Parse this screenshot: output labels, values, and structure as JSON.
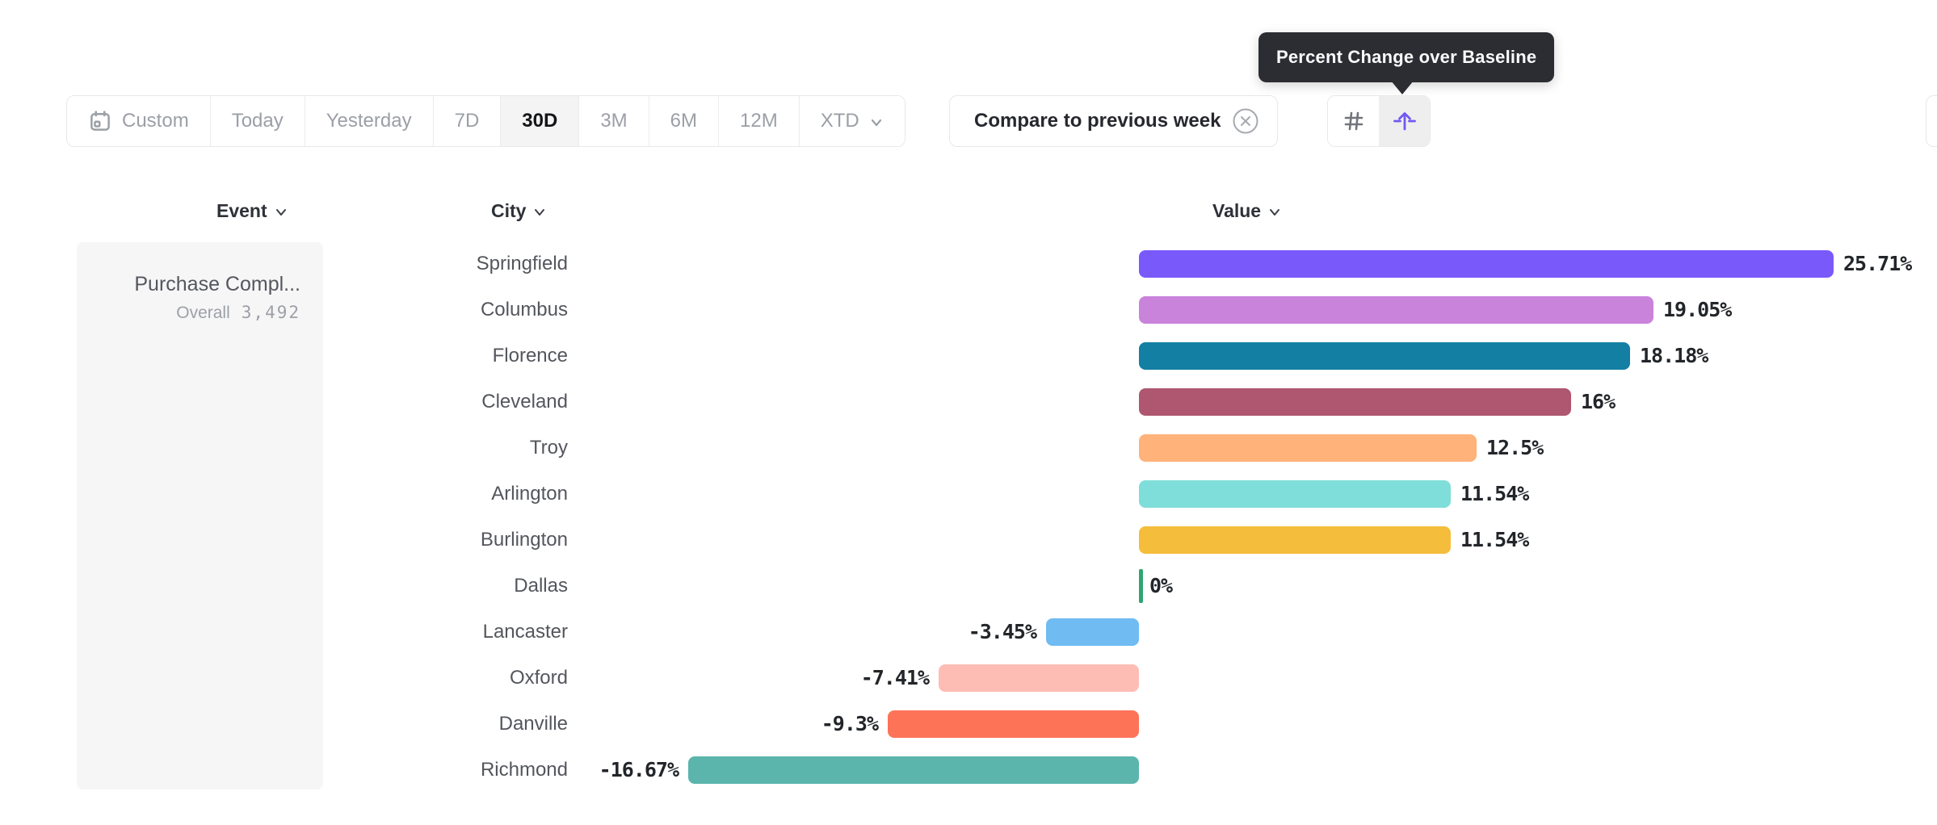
{
  "tooltip": {
    "text": "Percent Change over Baseline"
  },
  "toolbar": {
    "items": [
      {
        "label": "Custom",
        "icon": "calendar-icon",
        "selected": false
      },
      {
        "label": "Today",
        "selected": false
      },
      {
        "label": "Yesterday",
        "selected": false
      },
      {
        "label": "7D",
        "selected": false
      },
      {
        "label": "30D",
        "selected": true
      },
      {
        "label": "3M",
        "selected": false
      },
      {
        "label": "6M",
        "selected": false
      },
      {
        "label": "12M",
        "selected": false
      },
      {
        "label": "XTD",
        "selected": false,
        "chevron": true
      }
    ]
  },
  "comparison": {
    "label": "Compare to previous week",
    "close_icon": "circle-x-icon"
  },
  "view_toggles": {
    "number_view": {
      "icon": "hash-icon",
      "selected": false
    },
    "percent_change_view": {
      "icon": "baseline-arrow-up-icon",
      "selected": true,
      "accent_color": "#7158F0"
    }
  },
  "columns": [
    {
      "label": "Event"
    },
    {
      "label": "City"
    },
    {
      "label": "Value"
    }
  ],
  "event_panel": {
    "event_name": "Purchase Compl...",
    "overall_label": "Overall",
    "overall_value": "3,492"
  },
  "chart_data": {
    "type": "bar",
    "orientation": "horizontal",
    "title": "",
    "xlabel": "",
    "ylabel": "",
    "unit": "%",
    "baseline": 0,
    "grid": false,
    "value_labels_shown": true,
    "value_range": [
      -16.67,
      25.71
    ],
    "categories": [
      "Springfield",
      "Columbus",
      "Florence",
      "Cleveland",
      "Troy",
      "Arlington",
      "Burlington",
      "Dallas",
      "Lancaster",
      "Oxford",
      "Danville",
      "Richmond"
    ],
    "values": [
      25.71,
      19.05,
      18.18,
      16,
      12.5,
      11.54,
      11.54,
      0,
      -3.45,
      -7.41,
      -9.3,
      -16.67
    ],
    "labels": [
      "25.71%",
      "19.05%",
      "18.18%",
      "16%",
      "12.5%",
      "11.54%",
      "11.54%",
      "0%",
      "-3.45%",
      "-7.41%",
      "-9.3%",
      "-16.67%"
    ],
    "colors": [
      "#7A59FB",
      "#C983DB",
      "#137FA3",
      "#AF5670",
      "#FFB27A",
      "#7FDEDA",
      "#F5BD3C",
      "#2FA572",
      "#6FBBF2",
      "#FDBDB5",
      "#FD7358",
      "#5BB5AC"
    ]
  }
}
